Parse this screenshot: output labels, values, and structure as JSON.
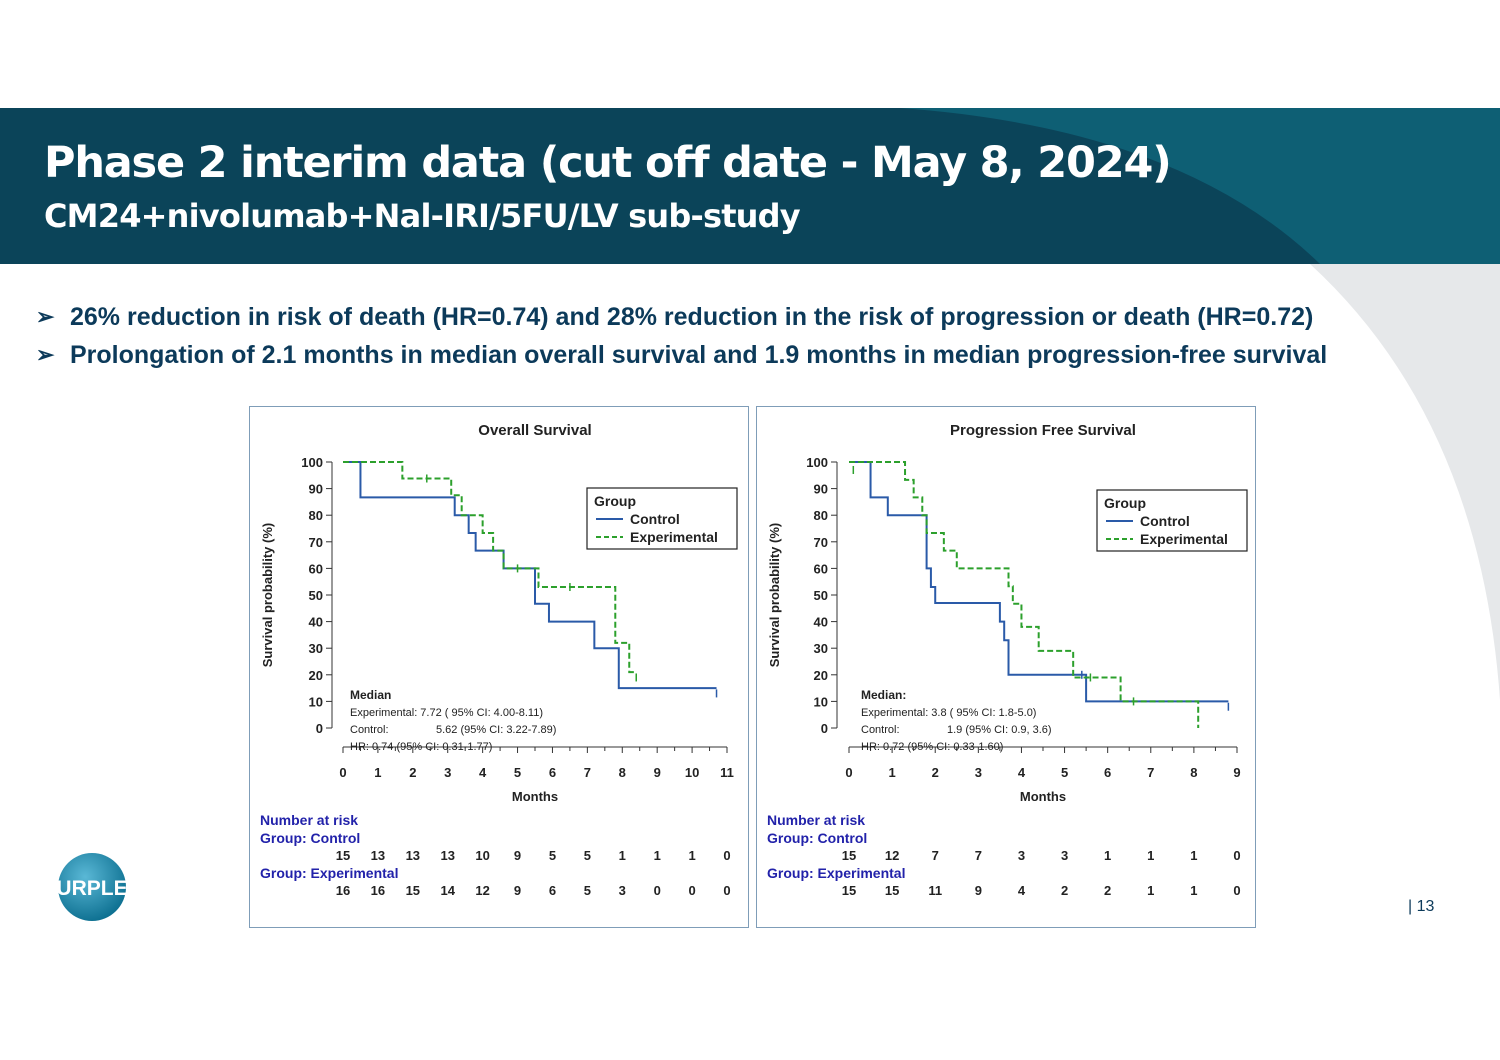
{
  "slide": {
    "title": "Phase 2 interim data (cut off date - May 8, 2024)",
    "subtitle": "CM24+nivolumab+Nal-IRI/5FU/LV sub-study",
    "bullets": [
      "26% reduction in risk of death (HR=0.74) and 28% reduction in the risk of progression or death (HR=0.72)",
      "Prolongation of 2.1 months in median overall survival and 1.9 months in median progression-free survival"
    ],
    "page_number": "| 13",
    "logo_text": "PURPLE",
    "colors": {
      "header": "#0b4459",
      "text": "#0c3a5a",
      "control": "#2a5aa8",
      "experimental": "#2ca02c",
      "risk_label": "#2222aa"
    }
  },
  "chart_data": [
    {
      "type": "line",
      "title": "Overall Survival",
      "xlabel": "Months",
      "ylabel": "Survival probability (%)",
      "xlim": [
        0,
        11
      ],
      "ylim": [
        0,
        100
      ],
      "xticks": [
        "0",
        "1",
        "2",
        "3",
        "4",
        "5",
        "6",
        "7",
        "8",
        "9",
        "10",
        "11"
      ],
      "yticks": [
        "0",
        "10",
        "20",
        "30",
        "40",
        "50",
        "60",
        "70",
        "80",
        "90",
        "100"
      ],
      "grid": false,
      "legend": {
        "title": "Group",
        "position": "top-right",
        "entries": [
          "Control",
          "Experimental"
        ]
      },
      "series": [
        {
          "name": "Control",
          "style": "solid",
          "x": [
            0,
            0.5,
            0.5,
            3.2,
            3.2,
            3.6,
            3.6,
            3.8,
            3.8,
            4.6,
            4.6,
            5.5,
            5.5,
            5.9,
            5.9,
            7.2,
            7.2,
            7.9,
            7.9,
            10.7
          ],
          "y": [
            100,
            100,
            86.7,
            86.7,
            80,
            80,
            73.3,
            73.3,
            66.7,
            66.7,
            60,
            60,
            46.7,
            46.7,
            40,
            40,
            30,
            30,
            15,
            15
          ],
          "censor": [
            [
              10.7,
              13
            ]
          ]
        },
        {
          "name": "Experimental",
          "style": "dashed",
          "x": [
            0,
            1.7,
            1.7,
            3.1,
            3.1,
            3.4,
            3.4,
            4.0,
            4.0,
            4.3,
            4.3,
            4.6,
            4.6,
            5.6,
            5.6,
            7.8,
            7.8,
            8.2,
            8.2,
            8.4
          ],
          "y": [
            100,
            100,
            93.8,
            93.8,
            87.5,
            87.5,
            80,
            80,
            73.3,
            73.3,
            66.7,
            66.7,
            60,
            60,
            53,
            53,
            32,
            32,
            21,
            21
          ],
          "censor": [
            [
              2.4,
              93.8
            ],
            [
              5.0,
              60
            ],
            [
              6.5,
              53
            ],
            [
              8.4,
              19
            ]
          ]
        }
      ],
      "annotation": [
        "Median",
        "Experimental: 7.72 ( 95% CI: 4.00-8.11)",
        "Control:",
        "5.62 (95% CI: 3.22-7.89)",
        "HR:  0.74 (95% CI: 0.31-1.77)"
      ],
      "risk_table": {
        "title": "Number at risk",
        "groups": [
          {
            "label": "Group: Control",
            "values": [
              "15",
              "13",
              "13",
              "13",
              "10",
              "9",
              "5",
              "5",
              "1",
              "1",
              "1",
              "0"
            ]
          },
          {
            "label": "Group: Experimental",
            "values": [
              "16",
              "16",
              "15",
              "14",
              "12",
              "9",
              "6",
              "5",
              "3",
              "0",
              "0",
              "0"
            ]
          }
        ]
      }
    },
    {
      "type": "line",
      "title": "Progression Free Survival",
      "xlabel": "Months",
      "ylabel": "Survival probability (%)",
      "xlim": [
        0,
        9
      ],
      "ylim": [
        0,
        100
      ],
      "xticks": [
        "0",
        "1",
        "2",
        "3",
        "4",
        "5",
        "6",
        "7",
        "8",
        "9"
      ],
      "yticks": [
        "0",
        "10",
        "20",
        "30",
        "40",
        "50",
        "60",
        "70",
        "80",
        "90",
        "100"
      ],
      "grid": false,
      "legend": {
        "title": "Group",
        "position": "top-right",
        "entries": [
          "Control",
          "Experimental"
        ]
      },
      "series": [
        {
          "name": "Control",
          "style": "solid",
          "x": [
            0,
            0.5,
            0.5,
            0.9,
            0.9,
            1.8,
            1.8,
            1.9,
            1.9,
            2.0,
            2.0,
            3.5,
            3.5,
            3.6,
            3.6,
            3.7,
            3.7,
            5.5,
            5.5,
            8.8
          ],
          "y": [
            100,
            100,
            86.7,
            86.7,
            80,
            80,
            60,
            60,
            53,
            53,
            47,
            47,
            40,
            40,
            33,
            33,
            20,
            20,
            10,
            10
          ],
          "censor": [
            [
              5.4,
              20
            ],
            [
              8.8,
              8
            ]
          ]
        },
        {
          "name": "Experimental",
          "style": "dashed",
          "x": [
            0,
            1.3,
            1.3,
            1.5,
            1.5,
            1.7,
            1.7,
            1.8,
            1.8,
            2.2,
            2.2,
            2.5,
            2.5,
            3.7,
            3.7,
            3.8,
            3.8,
            4.0,
            4.0,
            4.4,
            4.4,
            5.2,
            5.2,
            6.3,
            6.3,
            8.1,
            8.1
          ],
          "y": [
            100,
            100,
            93.3,
            93.3,
            86.7,
            86.7,
            80,
            80,
            73.3,
            73.3,
            66.7,
            66.7,
            60,
            60,
            53.3,
            53.3,
            46.7,
            46.7,
            38,
            38,
            29,
            29,
            19,
            19,
            10,
            10,
            0
          ],
          "censor": [
            [
              0.1,
              97
            ],
            [
              5.6,
              19
            ],
            [
              6.6,
              10
            ]
          ]
        }
      ],
      "annotation": [
        "Median:",
        "Experimental: 3.8 ( 95% CI: 1.8-5.0)",
        "Control:",
        "1.9 (95% CI: 0.9, 3.6)",
        "HR: 0.72 (95% CI: 0.33-1.60)"
      ],
      "risk_table": {
        "title": "Number at risk",
        "groups": [
          {
            "label": "Group: Control",
            "values": [
              "15",
              "12",
              "7",
              "7",
              "3",
              "3",
              "1",
              "1",
              "1",
              "0"
            ]
          },
          {
            "label": "Group: Experimental",
            "values": [
              "15",
              "15",
              "11",
              "9",
              "4",
              "2",
              "2",
              "1",
              "1",
              "0"
            ]
          }
        ]
      }
    }
  ]
}
